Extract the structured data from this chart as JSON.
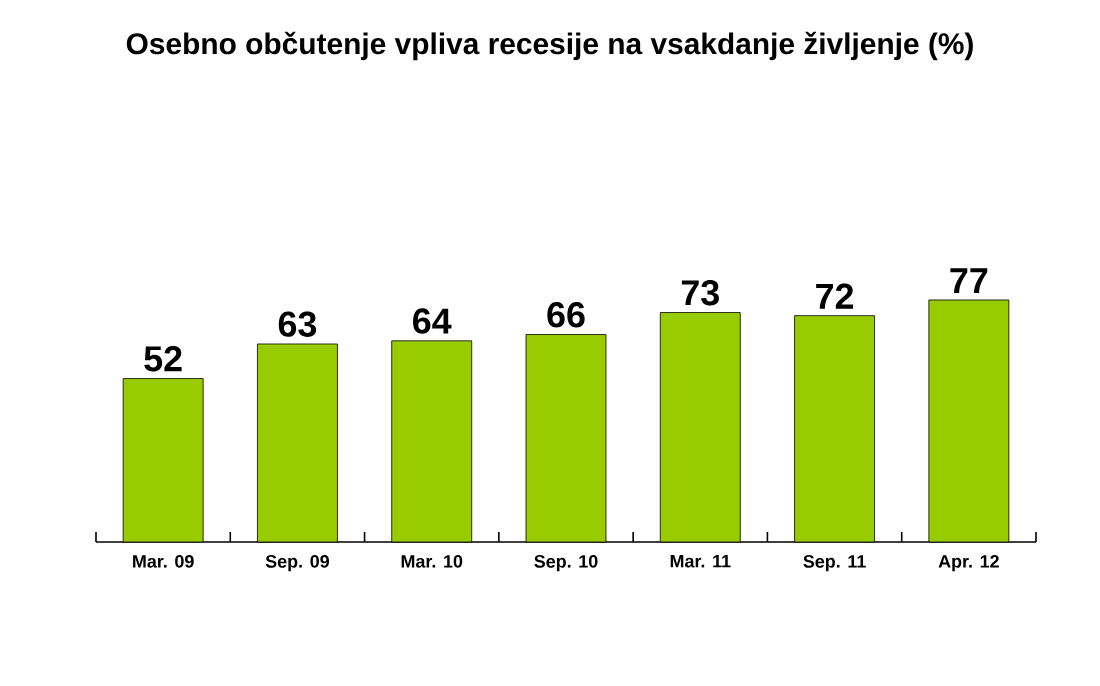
{
  "chart_data": {
    "type": "bar",
    "title": "Osebno občutenje vpliva recesije na vsakdanje življenje (%)",
    "categories": [
      "Mar. 09",
      "Sep. 09",
      "Mar. 10",
      "Sep. 10",
      "Mar. 11",
      "Sep. 11",
      "Apr. 12"
    ],
    "values": [
      52,
      63,
      64,
      66,
      73,
      72,
      77
    ],
    "color": "#99cc00",
    "data_labels": true
  }
}
